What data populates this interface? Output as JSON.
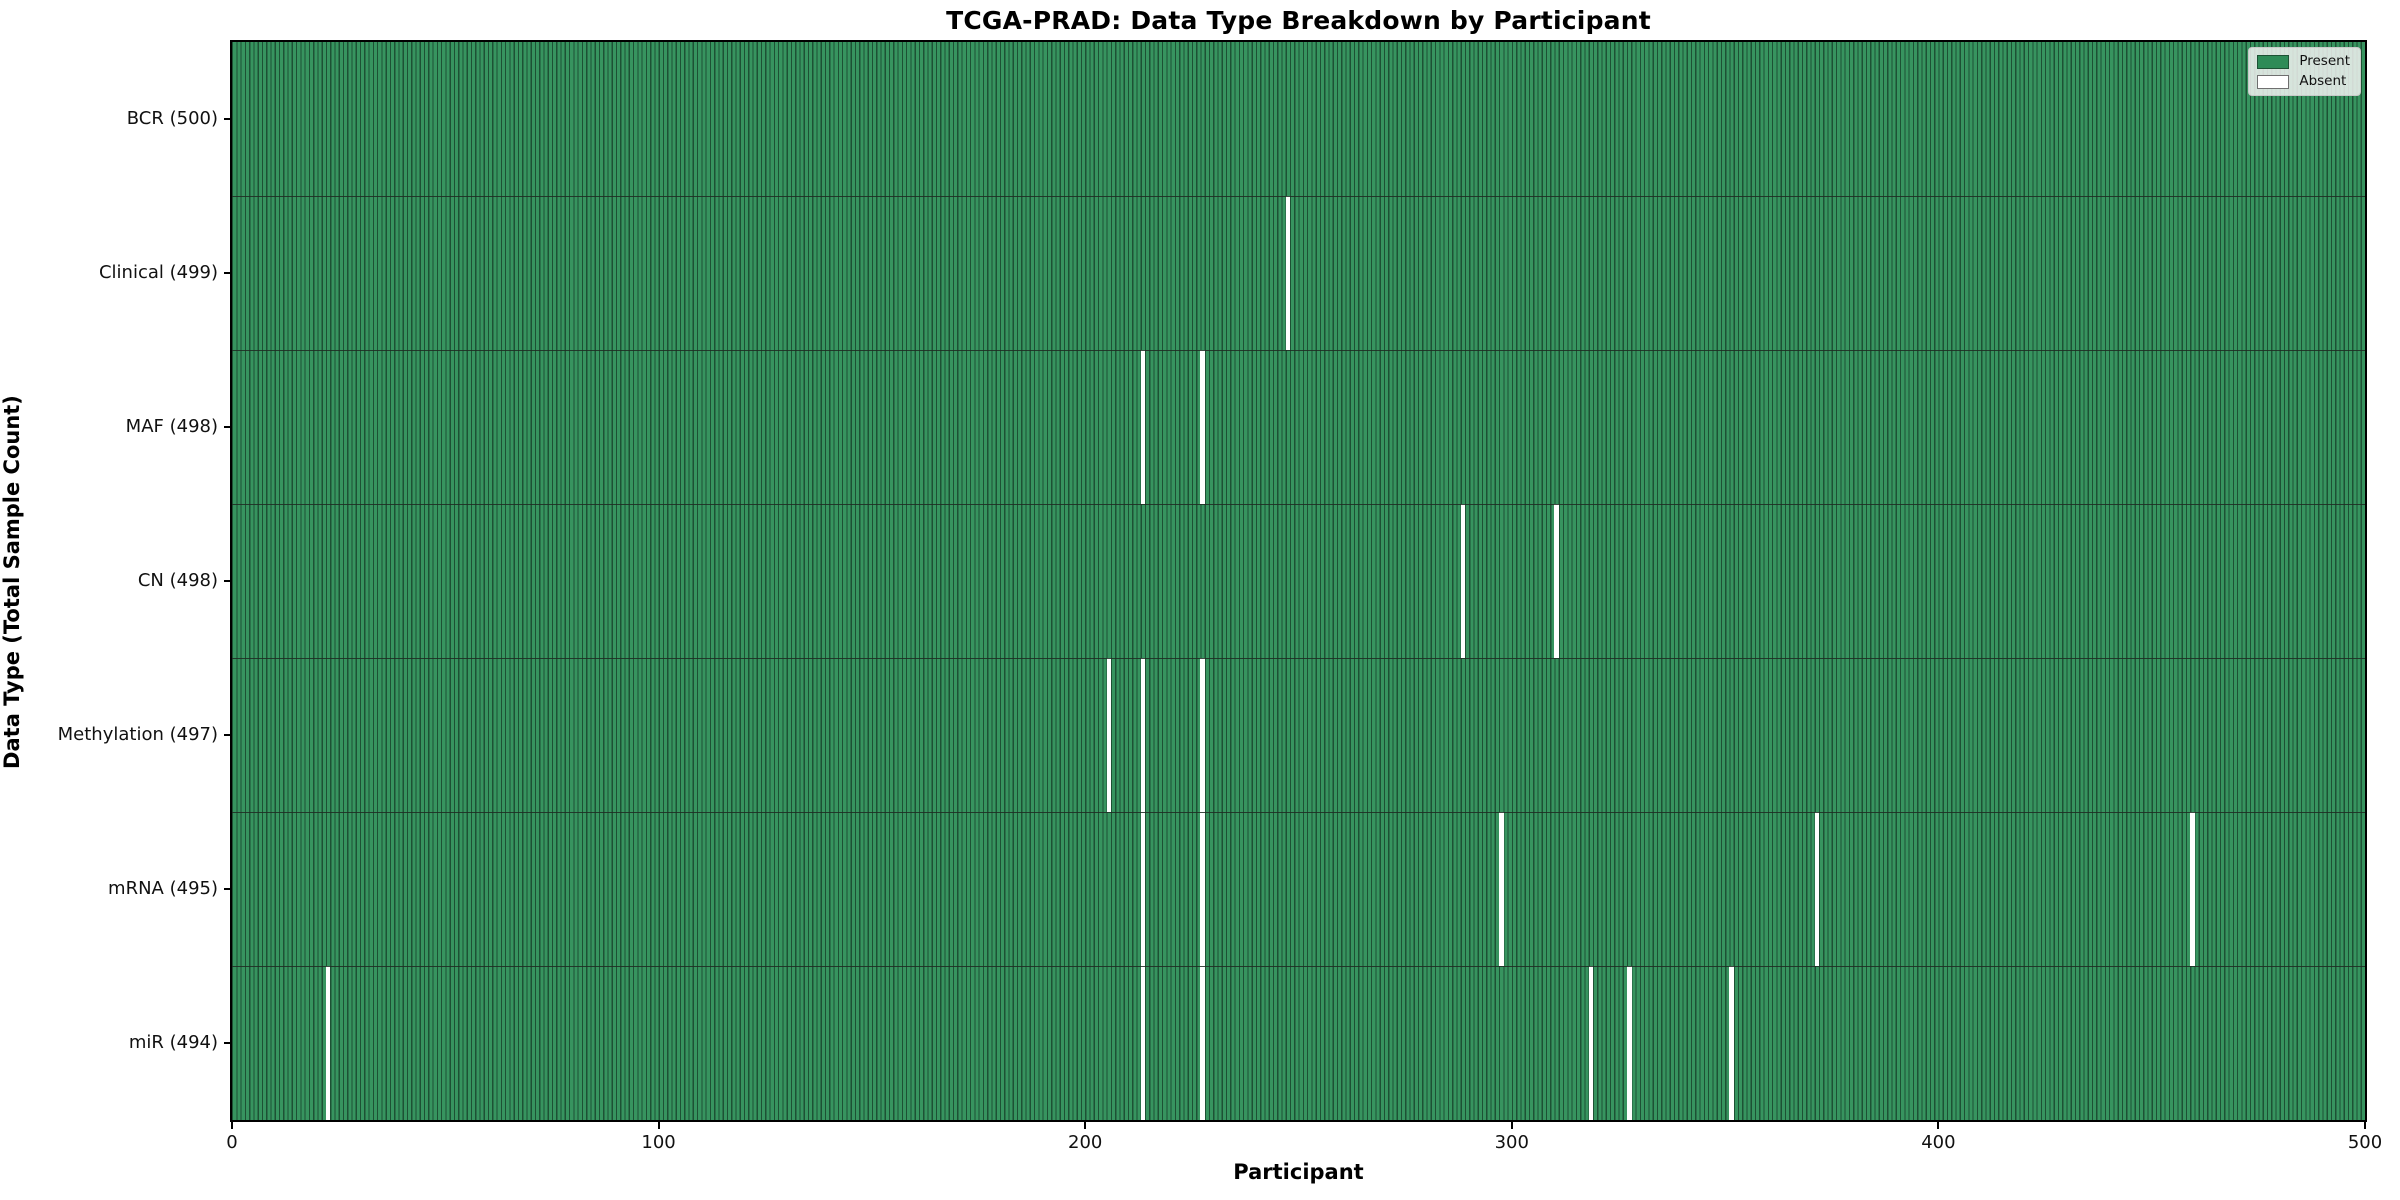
{
  "chart_data": {
    "type": "heatmap",
    "title": "TCGA-PRAD: Data Type Breakdown by Participant",
    "xlabel": "Participant",
    "ylabel": "Data Type (Total Sample Count)",
    "x_range": [
      0,
      500
    ],
    "n_participants": 500,
    "x_ticks": [
      0,
      100,
      200,
      300,
      400,
      500
    ],
    "x_tick_labels": [
      "0",
      "100",
      "200",
      "300",
      "400",
      "500"
    ],
    "grid": false,
    "legend": {
      "position": "upper right",
      "entries": [
        {
          "label": "Present",
          "color": "#2e8b57"
        },
        {
          "label": "Absent",
          "color": "#ffffff"
        }
      ]
    },
    "colors": {
      "present_fill": "#37945f",
      "present_edge": "#1d5134",
      "absent": "#ffffff",
      "row_separator": "#1f2a22",
      "plot_border": "#000000"
    },
    "rows": [
      {
        "name": "BCR",
        "label": "BCR (500)",
        "total": 500,
        "absent_participants": []
      },
      {
        "name": "Clinical",
        "label": "Clinical (499)",
        "total": 499,
        "absent_participants": [
          247
        ]
      },
      {
        "name": "MAF",
        "label": "MAF (498)",
        "total": 498,
        "absent_participants": [
          213,
          227
        ]
      },
      {
        "name": "CN",
        "label": "CN (498)",
        "total": 498,
        "absent_participants": [
          288,
          310
        ]
      },
      {
        "name": "Methylation",
        "label": "Methylation (497)",
        "total": 497,
        "absent_participants": [
          205,
          213,
          227
        ]
      },
      {
        "name": "mRNA",
        "label": "mRNA (495)",
        "total": 495,
        "absent_participants": [
          213,
          227,
          297,
          371,
          459
        ]
      },
      {
        "name": "miR",
        "label": "miR (494)",
        "total": 494,
        "absent_participants": [
          22,
          213,
          227,
          318,
          327,
          351
        ]
      }
    ]
  }
}
